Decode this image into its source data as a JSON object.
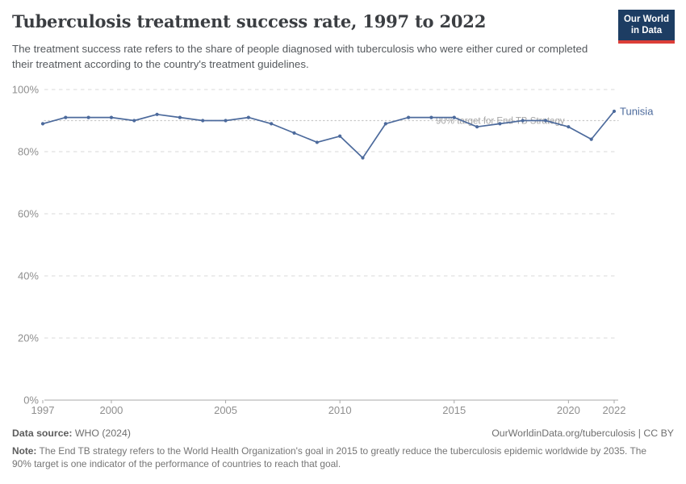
{
  "header": {
    "title": "Tuberculosis treatment success rate, 1997 to 2022",
    "subtitle": "The treatment success rate refers to the share of people diagnosed with tuberculosis who were either cured or completed their treatment according to the country's treatment guidelines.",
    "logo": {
      "line1": "Our World",
      "line2": "in Data",
      "bg_color": "#1d3d63",
      "accent_color": "#dc3e38"
    }
  },
  "chart_data": {
    "type": "line",
    "title": "Tuberculosis treatment success rate, 1997 to 2022",
    "xlabel": "",
    "ylabel": "",
    "x": [
      1997,
      1998,
      1999,
      2000,
      2001,
      2002,
      2003,
      2004,
      2005,
      2006,
      2007,
      2008,
      2009,
      2010,
      2011,
      2012,
      2013,
      2014,
      2015,
      2016,
      2017,
      2018,
      2019,
      2020,
      2021,
      2022
    ],
    "series": [
      {
        "name": "Tunisia",
        "color": "#4C6A9C",
        "values": [
          89,
          91,
          91,
          91,
          90,
          92,
          91,
          90,
          90,
          91,
          89,
          86,
          83,
          85,
          78,
          89,
          91,
          91,
          91,
          88,
          89,
          90,
          90,
          88,
          84,
          93
        ]
      }
    ],
    "ylim": [
      0,
      100
    ],
    "yticks": [
      0,
      20,
      40,
      60,
      80,
      100
    ],
    "ytick_suffix": "%",
    "xticks": [
      1997,
      2000,
      2005,
      2010,
      2015,
      2020,
      2022
    ],
    "grid": true,
    "legend_position": "end-of-line-label",
    "target_line": {
      "value": 90,
      "label": "90% target for End TB Strategy"
    },
    "colors": {
      "grid": "#d9d9d9",
      "axis": "#a8a8a8",
      "tick_text": "#8f8f8f",
      "target_line": "#c9c9c9",
      "target_text": "#a5a5a5"
    }
  },
  "footer": {
    "datasource_label": "Data source:",
    "datasource_value": " WHO (2024)",
    "credit": "OurWorldinData.org/tuberculosis | CC BY",
    "note_label": "Note:",
    "note_value": " The End TB strategy refers to the World Health Organization's goal in 2015 to greatly reduce the tuberculosis epidemic worldwide by 2035. The 90% target is one indicator of the performance of countries to reach that goal."
  }
}
